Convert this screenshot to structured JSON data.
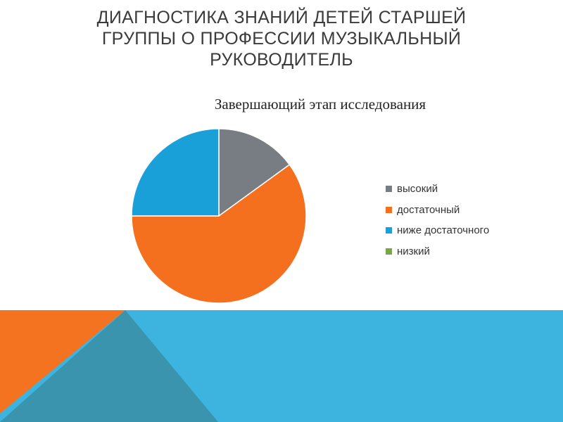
{
  "slide": {
    "title": "ДИАГНОСТИКА ЗНАНИЙ ДЕТЕЙ СТАРШЕЙ ГРУППЫ О ПРОФЕССИИ МУЗЫКАЛЬНЫЙ РУКОВОДИТЕЛЬ"
  },
  "colors": {
    "band_blue": "#3db4e0",
    "band_orange": "#f47320",
    "band_teal": "#3a94ad"
  },
  "chart_data": {
    "type": "pie",
    "title": "Завершающий этап исследования",
    "legend_position": "right",
    "slices": [
      {
        "label": "высокий",
        "value": 15,
        "color": "#787c83"
      },
      {
        "label": "достаточный",
        "value": 60,
        "color": "#f4701e"
      },
      {
        "label": "ниже достаточного",
        "value": 25,
        "color": "#1aa0d9"
      },
      {
        "label": "низкий",
        "value": 0,
        "color": "#7aa54a"
      }
    ]
  }
}
